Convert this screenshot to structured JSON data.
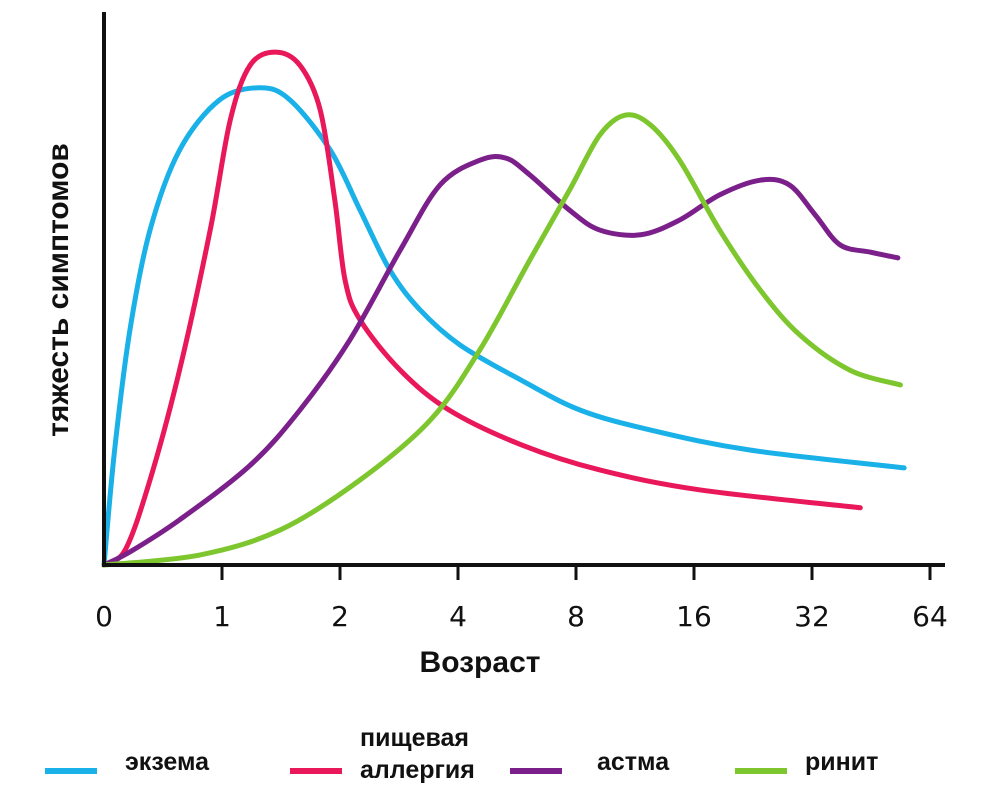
{
  "chart_data": {
    "type": "line",
    "title": "",
    "xlabel": "Возраст",
    "ylabel": "тяжесть симптомов",
    "x_scale": "log2 (0, then doubling)",
    "x_ticks": [
      "0",
      "1",
      "2",
      "4",
      "8",
      "16",
      "32",
      "64"
    ],
    "x_tick_values": [
      0,
      1,
      2,
      4,
      8,
      16,
      32,
      64
    ],
    "y_ticks": [],
    "ylim": [
      0,
      100
    ],
    "grid": false,
    "legend_position": "bottom",
    "series": [
      {
        "name": "экзема",
        "color": "#1ab0e8",
        "x": [
          0,
          0.09,
          0.22,
          0.39,
          0.64,
          0.98,
          1.25,
          1.49,
          1.89,
          2.25,
          2.68,
          3.2,
          4.05,
          5.8,
          8.2,
          12.4,
          22.2,
          55
        ],
        "y": [
          0,
          21.9,
          44.8,
          63.8,
          79,
          88.6,
          90.9,
          88.6,
          79,
          67.6,
          56.2,
          48.6,
          41.9,
          35.2,
          29.5,
          25.7,
          21.9,
          18.5
        ]
      },
      {
        "name": "пищевая аллергия",
        "color": "#e8185a",
        "x": [
          0,
          0.18,
          0.39,
          0.64,
          0.9,
          1.05,
          1.18,
          1.37,
          1.58,
          1.78,
          1.94,
          2.06,
          2.25,
          2.85,
          3.8,
          5.8,
          9.2,
          16.6,
          42.5
        ],
        "y": [
          0,
          2.9,
          16.2,
          37.1,
          63.8,
          84.8,
          95.2,
          97.7,
          95.2,
          86.7,
          69.5,
          54.3,
          46.7,
          37.1,
          29.5,
          22.9,
          18.1,
          14.3,
          10.9
        ]
      },
      {
        "name": "астма",
        "color": "#7b1f8a",
        "x": [
          0,
          0.22,
          0.64,
          1.18,
          1.58,
          2.12,
          2.85,
          3.6,
          4.55,
          5.3,
          6.1,
          7.7,
          9.2,
          11.7,
          14.7,
          18.6,
          23.6,
          28,
          32.6,
          37.7,
          45,
          53
        ],
        "y": [
          0,
          2.5,
          8.6,
          19,
          29.5,
          42.9,
          60,
          72.4,
          77.1,
          77.5,
          74.3,
          67.6,
          63.8,
          62.9,
          65.7,
          70.5,
          73.3,
          72.4,
          66.7,
          61,
          59.6,
          58.5
        ]
      },
      {
        "name": "ринит",
        "color": "#7dc62e",
        "x": [
          0,
          0.81,
          1.41,
          2.25,
          3.4,
          4.55,
          6.1,
          7.7,
          9.2,
          10.7,
          12.4,
          14.7,
          18.6,
          23.6,
          29.8,
          40,
          53.8
        ],
        "y": [
          0,
          1.9,
          6.7,
          16.2,
          27.6,
          41,
          58.1,
          71.4,
          81.9,
          85.7,
          83.8,
          77.1,
          63.8,
          52.4,
          43.8,
          37.1,
          34.3
        ]
      }
    ]
  },
  "legend": [
    {
      "lines": [
        "экзема"
      ],
      "color": "#1ab0e8"
    },
    {
      "lines": [
        "пищевая",
        "аллергия"
      ],
      "color": "#e8185a"
    },
    {
      "lines": [
        "астма"
      ],
      "color": "#7b1f8a"
    },
    {
      "lines": [
        "ринит"
      ],
      "color": "#7dc62e"
    }
  ]
}
